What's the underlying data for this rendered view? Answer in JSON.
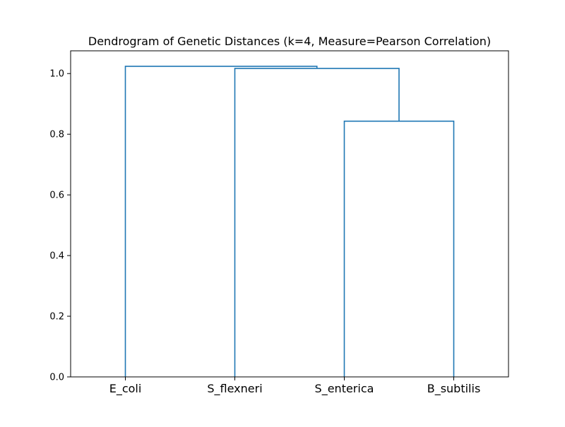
{
  "chart_data": {
    "type": "dendrogram",
    "title": "Dendrogram of Genetic Distances (k=4, Measure=Pearson Correlation)",
    "xlabel": "",
    "ylabel": "",
    "ylim": [
      0,
      1.075
    ],
    "grid": false,
    "legend": "none",
    "link_color": "#1f77b4",
    "leaves": [
      "E_coli",
      "S_flexneri",
      "S_enterica",
      "B_subtilis"
    ],
    "yticks": [
      {
        "value": 0.0,
        "label": "0.0"
      },
      {
        "value": 0.2,
        "label": "0.2"
      },
      {
        "value": 0.4,
        "label": "0.4"
      },
      {
        "value": 0.6,
        "label": "0.6"
      },
      {
        "value": 0.8,
        "label": "0.8"
      },
      {
        "value": 1.0,
        "label": "1.0"
      }
    ],
    "merges": [
      {
        "left": "S_enterica",
        "right": "B_subtilis",
        "height": 0.843
      },
      {
        "left": "S_flexneri",
        "right": "S_enterica+B_subtilis",
        "height": 1.017
      },
      {
        "left": "E_coli",
        "right": "S_flexneri+S_enterica+B_subtilis",
        "height": 1.024
      }
    ]
  }
}
